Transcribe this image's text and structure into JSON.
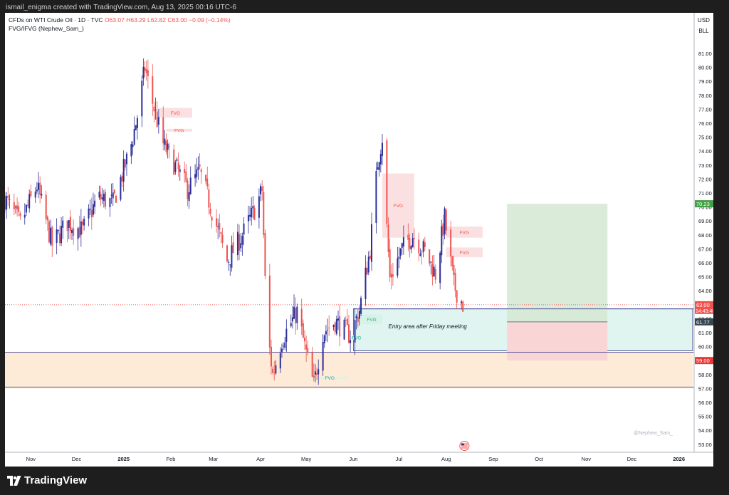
{
  "header": {
    "text": "ismail_enigma created with TradingView.com, Aug 13, 2025 00:16 UTC-6"
  },
  "legend": {
    "symbol": "CFDs on WTI Crude Oil · 1D · TVC",
    "open": "O63.07",
    "high": "H63.29",
    "low": "L62.82",
    "close": "C63.00",
    "change": "−0.09 (−0.14%)",
    "indicator": "FVG/IFVG (Nephew_Sam_)"
  },
  "currency": {
    "code": "USD",
    "unit": "BLL"
  },
  "footer": {
    "brand": "TradingView"
  },
  "watermark": "@Nephew_Sam_",
  "colors": {
    "up": "#2a2e99",
    "down": "#ef5350",
    "bearish_fvg": "#fbe0e1",
    "bullish_fvg": "#d6f4e6",
    "target_zone": "#d5e8d4",
    "stop_zone": "#f9d5d5",
    "demand_zone": "#fdebd7",
    "entry_zone": "#e0f5f0"
  },
  "chart_data": {
    "type": "candlestick",
    "ylim": [
      53.0,
      81.0
    ],
    "y_ticks": [
      "81.00",
      "80.00",
      "79.00",
      "78.00",
      "77.00",
      "76.00",
      "75.00",
      "74.00",
      "73.00",
      "72.00",
      "71.00",
      "70.00",
      "69.00",
      "68.00",
      "67.00",
      "66.00",
      "65.00",
      "64.00",
      "63.00",
      "62.00",
      "61.00",
      "60.00",
      "59.00",
      "58.00",
      "57.00",
      "56.00",
      "55.00",
      "54.00",
      "53.00"
    ],
    "x_ticks": [
      "Nov",
      "Dec",
      "2025",
      "Feb",
      "Mar",
      "Apr",
      "May",
      "Jun",
      "Jul",
      "Aug",
      "Sep",
      "Oct",
      "Nov",
      "Dec",
      "2026"
    ],
    "price_labels": [
      {
        "value": 70.23,
        "text": "70.23",
        "color": "#43a047"
      },
      {
        "value": 63.0,
        "text": "63.00",
        "sub": "14:43:40",
        "color": "#ef5350"
      },
      {
        "value": 61.77,
        "text": "61.77",
        "color": "#37474f"
      },
      {
        "value": 59.0,
        "text": "59.00",
        "color": "#e53935"
      }
    ],
    "annotations": {
      "entry_text": "Entry area after Friday meeting",
      "fvg_label": "FVG"
    },
    "zones": [
      {
        "kind": "demand",
        "start": "2024-10-15",
        "end": "2026-01-10",
        "top": 59.6,
        "bottom": 57.0
      },
      {
        "kind": "entry",
        "start": "2025-06-01",
        "end": "2026-01-10",
        "top": 62.7,
        "bottom": 59.7
      },
      {
        "kind": "target",
        "start": "2025-09-10",
        "end": "2025-11-15",
        "top": 70.23,
        "bottom": 61.77
      },
      {
        "kind": "stop",
        "start": "2025-09-10",
        "end": "2025-11-15",
        "top": 61.77,
        "bottom": 59.0
      }
    ],
    "fvgs": [
      {
        "dir": "bear",
        "start": "2025-01-24",
        "end": "2025-02-15",
        "top": 77.1,
        "bottom": 76.4
      },
      {
        "dir": "bear",
        "start": "2025-01-29",
        "end": "2025-02-15",
        "top": 75.6,
        "bottom": 75.4
      },
      {
        "dir": "bear",
        "start": "2025-06-20",
        "end": "2025-07-11",
        "top": 72.4,
        "bottom": 67.8
      },
      {
        "dir": "bear",
        "start": "2025-08-01",
        "end": "2025-08-25",
        "top": 68.6,
        "bottom": 67.8
      },
      {
        "dir": "bear",
        "start": "2025-08-01",
        "end": "2025-08-25",
        "top": 67.1,
        "bottom": 66.4
      },
      {
        "dir": "bull",
        "start": "2025-06-06",
        "end": "2025-06-20",
        "top": 62.3,
        "bottom": 61.6
      },
      {
        "dir": "bull",
        "start": "2025-05-31",
        "end": "2025-06-06",
        "top": 60.8,
        "bottom": 60.5
      },
      {
        "dir": "bull",
        "start": "2025-05-05",
        "end": "2025-05-28",
        "top": 57.8,
        "bottom": 57.7
      }
    ],
    "lines": [
      {
        "kind": "current_price",
        "value": 63.0
      },
      {
        "kind": "zone_top",
        "value": 59.6
      },
      {
        "kind": "zone_bottom",
        "value": 57.1
      },
      {
        "kind": "entry_top",
        "value": 62.7
      }
    ],
    "anchors": [
      {
        "date": "2024-10-15",
        "close": 70.6
      },
      {
        "date": "2024-10-25",
        "close": 68.8
      },
      {
        "date": "2024-11-05",
        "close": 71.5
      },
      {
        "date": "2024-11-15",
        "close": 67.3
      },
      {
        "date": "2024-11-25",
        "close": 68.9
      },
      {
        "date": "2024-12-05",
        "close": 68.3
      },
      {
        "date": "2024-12-15",
        "close": 70.7
      },
      {
        "date": "2024-12-25",
        "close": 70.3
      },
      {
        "date": "2025-01-05",
        "close": 74.0
      },
      {
        "date": "2025-01-10",
        "close": 76.5
      },
      {
        "date": "2025-01-15",
        "close": 80.0
      },
      {
        "date": "2025-01-20",
        "close": 77.5
      },
      {
        "date": "2025-01-27",
        "close": 74.5
      },
      {
        "date": "2025-02-05",
        "close": 72.7
      },
      {
        "date": "2025-02-12",
        "close": 71.3
      },
      {
        "date": "2025-02-20",
        "close": 72.5
      },
      {
        "date": "2025-03-01",
        "close": 69.4
      },
      {
        "date": "2025-03-10",
        "close": 66.1
      },
      {
        "date": "2025-03-20",
        "close": 68.0
      },
      {
        "date": "2025-03-28",
        "close": 69.8
      },
      {
        "date": "2025-04-02",
        "close": 71.2
      },
      {
        "date": "2025-04-05",
        "close": 61.5
      },
      {
        "date": "2025-04-09",
        "close": 58.0
      },
      {
        "date": "2025-04-15",
        "close": 60.5
      },
      {
        "date": "2025-04-25",
        "close": 62.5
      },
      {
        "date": "2025-05-03",
        "close": 58.5
      },
      {
        "date": "2025-05-06",
        "close": 57.2
      },
      {
        "date": "2025-05-12",
        "close": 61.0
      },
      {
        "date": "2025-05-20",
        "close": 61.8
      },
      {
        "date": "2025-05-30",
        "close": 60.8
      },
      {
        "date": "2025-06-05",
        "close": 62.6
      },
      {
        "date": "2025-06-12",
        "close": 67.0
      },
      {
        "date": "2025-06-17",
        "close": 73.2
      },
      {
        "date": "2025-06-20",
        "close": 75.0
      },
      {
        "date": "2025-06-23",
        "close": 68.5
      },
      {
        "date": "2025-06-25",
        "close": 64.9
      },
      {
        "date": "2025-07-03",
        "close": 67.0
      },
      {
        "date": "2025-07-10",
        "close": 68.0
      },
      {
        "date": "2025-07-18",
        "close": 66.8
      },
      {
        "date": "2025-07-25",
        "close": 65.2
      },
      {
        "date": "2025-07-31",
        "close": 69.2
      },
      {
        "date": "2025-08-06",
        "close": 64.4
      },
      {
        "date": "2025-08-12",
        "close": 63.0
      }
    ]
  }
}
